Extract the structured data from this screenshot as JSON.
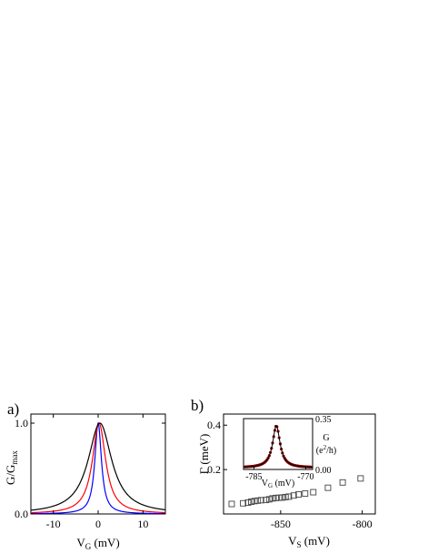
{
  "chart_data": [
    {
      "panel": "a)",
      "type": "line",
      "xlabel_main": "V",
      "xlabel_sub": "G",
      "xlabel_unit": " (mV)",
      "ylabel_main": "G/G",
      "ylabel_sub": "max",
      "xlim": [
        -15,
        15
      ],
      "ylim": [
        0,
        1.1
      ],
      "xticks": [
        -10,
        0,
        10
      ],
      "yticks": [
        0.0,
        1.0
      ],
      "ytick_labels": [
        "0.0",
        "1.0"
      ],
      "series": [
        {
          "color": "#0000ff",
          "shape": "lorentzian",
          "x0": 0,
          "hwhm": 0.9
        },
        {
          "color": "#ff0000",
          "shape": "lorentzian",
          "x0": 0.2,
          "hwhm": 1.8
        },
        {
          "color": "#000000",
          "shape": "lorentzian",
          "x0": 0.4,
          "hwhm": 3.2
        }
      ]
    },
    {
      "panel": "b)",
      "type": "scatter",
      "xlabel_main": "V",
      "xlabel_sub": "S",
      "xlabel_unit": " (mV)",
      "ylabel": "Γ (meV)",
      "xlim": [
        -885,
        -792
      ],
      "ylim": [
        0.0,
        0.45
      ],
      "xticks": [
        -850,
        -800
      ],
      "yticks": [
        0.2,
        0.4
      ],
      "ytick_labels": [
        "0.2",
        "0.4"
      ],
      "marker": "open-square",
      "points": [
        [
          -880,
          0.045
        ],
        [
          -873,
          0.048
        ],
        [
          -870,
          0.051
        ],
        [
          -868,
          0.055
        ],
        [
          -866,
          0.058
        ],
        [
          -864,
          0.06
        ],
        [
          -862,
          0.062
        ],
        [
          -859,
          0.063
        ],
        [
          -857,
          0.066
        ],
        [
          -855,
          0.07
        ],
        [
          -853,
          0.072
        ],
        [
          -851,
          0.073
        ],
        [
          -849,
          0.074
        ],
        [
          -847,
          0.076
        ],
        [
          -845,
          0.078
        ],
        [
          -842,
          0.083
        ],
        [
          -839,
          0.088
        ],
        [
          -835,
          0.092
        ],
        [
          -830,
          0.098
        ],
        [
          -821,
          0.118
        ],
        [
          -812,
          0.142
        ],
        [
          -801,
          0.16
        ]
      ],
      "inset": {
        "type": "line",
        "xlabel_main": "V",
        "xlabel_sub": "G",
        "xlabel_unit": " (mV)",
        "ylabel_line1": "G",
        "ylabel_line2_pre": "(e",
        "ylabel_line2_sup": "2",
        "ylabel_line2_post": "/h)",
        "xlim": [
          -788,
          -768
        ],
        "ylim": [
          0.0,
          0.35
        ],
        "xticks": [
          -785,
          -770
        ],
        "yticks": [
          0.0,
          0.35
        ],
        "ytick_labels": [
          "0.00",
          "0.35"
        ],
        "data_color": "#8b0000",
        "fit_color": "#000000",
        "peak": {
          "x0": -778.5,
          "height": 0.3,
          "hwhm": 1.3,
          "baseline": 0.012
        }
      }
    }
  ]
}
